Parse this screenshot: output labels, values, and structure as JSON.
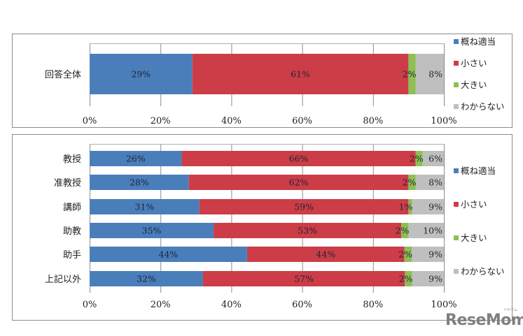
{
  "chart_data": [
    {
      "type": "bar",
      "orientation": "horizontal",
      "stacked": "percent",
      "title": "",
      "categories": [
        "回答全体"
      ],
      "series": [
        {
          "name": "概ね適当",
          "values": [
            29
          ],
          "labels": [
            "29%"
          ],
          "color": "#4a7ebb"
        },
        {
          "name": "小さい",
          "values": [
            61
          ],
          "labels": [
            "61%"
          ],
          "color": "#cc3d47"
        },
        {
          "name": "大きい",
          "values": [
            2
          ],
          "labels": [
            "2%"
          ],
          "color": "#8cc152"
        },
        {
          "name": "わからない",
          "values": [
            8
          ],
          "labels": [
            "8%"
          ],
          "color": "#bfbfbf"
        }
      ],
      "xlim": [
        0,
        100
      ],
      "xticks": [
        "0%",
        "20%",
        "40%",
        "60%",
        "80%",
        "100%"
      ],
      "xlabel": "",
      "ylabel": "",
      "grid": true,
      "legend_position": "right"
    },
    {
      "type": "bar",
      "orientation": "horizontal",
      "stacked": "percent",
      "title": "",
      "categories": [
        "教授",
        "准教授",
        "講師",
        "助教",
        "助手",
        "上記以外"
      ],
      "series": [
        {
          "name": "概ね適当",
          "values": [
            26,
            28,
            31,
            35,
            44,
            32
          ],
          "labels": [
            "26%",
            "28%",
            "31%",
            "35%",
            "44%",
            "32%"
          ],
          "color": "#4a7ebb"
        },
        {
          "name": "小さい",
          "values": [
            66,
            62,
            59,
            53,
            44,
            57
          ],
          "labels": [
            "66%",
            "62%",
            "59%",
            "53%",
            "44%",
            "57%"
          ],
          "color": "#cc3d47"
        },
        {
          "name": "大きい",
          "values": [
            2,
            2,
            1,
            2,
            2,
            2
          ],
          "labels": [
            "2%",
            "2%",
            "1%",
            "2%",
            "2%",
            "2%"
          ],
          "color": "#8cc152"
        },
        {
          "name": "わからない",
          "values": [
            6,
            8,
            9,
            10,
            9,
            9
          ],
          "labels": [
            "6%",
            "8%",
            "9%",
            "10%",
            "9%",
            "9%"
          ],
          "color": "#bfbfbf"
        }
      ],
      "xlim": [
        0,
        100
      ],
      "xticks": [
        "0%",
        "20%",
        "40%",
        "60%",
        "80%",
        "100%"
      ],
      "xlabel": "",
      "ylabel": "",
      "grid": true,
      "legend_position": "right"
    }
  ],
  "watermark": {
    "text": "ReseMom",
    "subtext": "リセマム"
  }
}
